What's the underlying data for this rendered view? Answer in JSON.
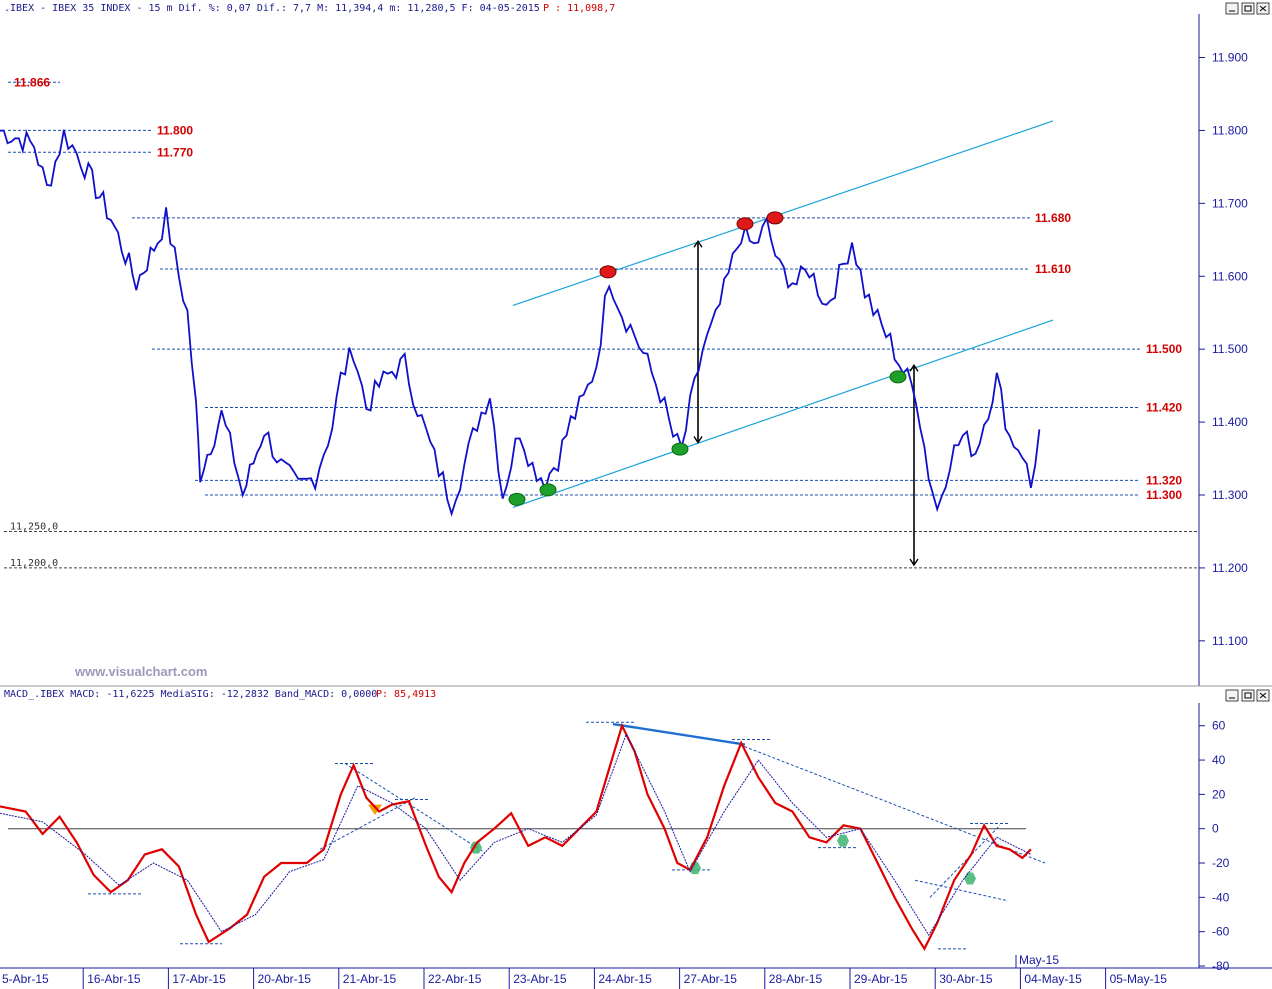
{
  "price_panel": {
    "header_left": ".IBEX - IBEX 35 INDEX -  15 m Dif. %: 0,07 Dif.: 7,7 M: 11,394,4 m: 11,280,5 F: 04-05-2015",
    "header_right": "P : 11,098,7",
    "watermark": "www.visualchart.com"
  },
  "macd_panel": {
    "header_left": "MACD_.IBEX MACD: -11,6225 MediaSIG: -12,2832 Band_MACD: 0,0000",
    "header_right": "P: 85,4913"
  },
  "colors": {
    "price": "#1010cc",
    "trendline": "#1aa3d8",
    "levels": "#1a4fb0",
    "level_labels": "#d40000",
    "macd": "#e00000",
    "signal": "#1a1aa0",
    "zero": "#444444",
    "axis_text": "#1a1aa0",
    "green_marker": "#1fa02a",
    "red_marker": "#e01818"
  },
  "chart_data": [
    {
      "type": "line",
      "title": "IBEX 35 INDEX - 15 m",
      "y_axis_ticks": [
        "11.900",
        "11.800",
        "11.700",
        "11.600",
        "11.500",
        "11.400",
        "11.300",
        "11.200",
        "11.100"
      ],
      "ylim": [
        11060,
        11935
      ],
      "x_labels": [
        "5-Abr-15",
        "16-Abr-15",
        "17-Abr-15",
        "20-Abr-15",
        "21-Abr-15",
        "22-Abr-15",
        "23-Abr-15",
        "24-Abr-15",
        "27-Abr-15",
        "28-Abr-15",
        "29-Abr-15",
        "30-Abr-15",
        "04-May-15",
        "05-May-15"
      ],
      "month_label": "May-15",
      "price_points": [
        [
          0,
          11800
        ],
        [
          0.4,
          11780
        ],
        [
          0.55,
          11720
        ],
        [
          0.75,
          11795
        ],
        [
          0.95,
          11760
        ],
        [
          1.3,
          11680
        ],
        [
          1.6,
          11590
        ],
        [
          1.85,
          11650
        ],
        [
          1.95,
          11680
        ],
        [
          2.1,
          11600
        ],
        [
          2.2,
          11550
        ],
        [
          2.3,
          11420
        ],
        [
          2.35,
          11330
        ],
        [
          2.6,
          11410
        ],
        [
          2.75,
          11350
        ],
        [
          2.85,
          11300
        ],
        [
          3.1,
          11390
        ],
        [
          3.3,
          11340
        ],
        [
          3.5,
          11310
        ],
        [
          3.7,
          11325
        ],
        [
          3.9,
          11395
        ],
        [
          4.0,
          11460
        ],
        [
          4.15,
          11500
        ],
        [
          4.3,
          11420
        ],
        [
          4.45,
          11450
        ],
        [
          4.6,
          11470
        ],
        [
          4.75,
          11480
        ],
        [
          4.9,
          11420
        ],
        [
          5.1,
          11350
        ],
        [
          5.3,
          11290
        ],
        [
          5.45,
          11340
        ],
        [
          5.6,
          11400
        ],
        [
          5.75,
          11440
        ],
        [
          5.9,
          11300
        ],
        [
          6.1,
          11390
        ],
        [
          6.25,
          11340
        ],
        [
          6.4,
          11320
        ],
        [
          6.55,
          11350
        ],
        [
          6.7,
          11400
        ],
        [
          6.85,
          11430
        ],
        [
          7.0,
          11480
        ],
        [
          7.15,
          11600
        ],
        [
          7.3,
          11550
        ],
        [
          7.45,
          11520
        ],
        [
          7.6,
          11480
        ],
        [
          7.75,
          11440
        ],
        [
          7.9,
          11380
        ],
        [
          8.0,
          11360
        ],
        [
          8.1,
          11420
        ],
        [
          8.25,
          11500
        ],
        [
          8.4,
          11540
        ],
        [
          8.55,
          11600
        ],
        [
          8.7,
          11660
        ],
        [
          8.85,
          11640
        ],
        [
          9.0,
          11670
        ],
        [
          9.15,
          11610
        ],
        [
          9.35,
          11590
        ],
        [
          9.5,
          11610
        ],
        [
          9.7,
          11560
        ],
        [
          9.85,
          11600
        ],
        [
          10.0,
          11650
        ],
        [
          10.15,
          11580
        ],
        [
          10.3,
          11540
        ],
        [
          10.45,
          11510
        ],
        [
          10.6,
          11470
        ],
        [
          10.75,
          11440
        ],
        [
          10.9,
          11330
        ],
        [
          11.0,
          11280
        ],
        [
          11.15,
          11350
        ],
        [
          11.3,
          11380
        ],
        [
          11.45,
          11360
        ],
        [
          11.55,
          11400
        ],
        [
          11.7,
          11460
        ],
        [
          11.85,
          11380
        ],
        [
          12.0,
          11360
        ],
        [
          12.1,
          11310
        ],
        [
          12.2,
          11390
        ]
      ],
      "levels_red": [
        "11.866",
        "11.800",
        "11.770",
        "11.680",
        "11.610",
        "11.500",
        "11.420",
        "11.320",
        "11.300"
      ],
      "levels_black": [
        "11,250,0",
        "11,200,0"
      ],
      "level_values": [
        11866,
        11800,
        11770,
        11680,
        11610,
        11500,
        11420,
        11320,
        11300,
        11250,
        11200
      ]
    },
    {
      "type": "line",
      "title": "MACD",
      "y_axis_ticks": [
        "60",
        "40",
        "20",
        "0",
        "-20",
        "-40",
        "-60",
        "-80"
      ],
      "ylim": [
        -80,
        68
      ],
      "series": [
        {
          "name": "MACD",
          "points": [
            [
              0,
              13
            ],
            [
              0.3,
              10
            ],
            [
              0.5,
              -3
            ],
            [
              0.7,
              7
            ],
            [
              0.9,
              -8
            ],
            [
              1.1,
              -27
            ],
            [
              1.3,
              -37
            ],
            [
              1.5,
              -30
            ],
            [
              1.7,
              -15
            ],
            [
              1.9,
              -12
            ],
            [
              2.1,
              -22
            ],
            [
              2.3,
              -50
            ],
            [
              2.45,
              -66
            ],
            [
              2.7,
              -58
            ],
            [
              2.9,
              -50
            ],
            [
              3.1,
              -28
            ],
            [
              3.3,
              -20
            ],
            [
              3.6,
              -20
            ],
            [
              3.8,
              -12
            ],
            [
              4.0,
              20
            ],
            [
              4.15,
              37
            ],
            [
              4.3,
              18
            ],
            [
              4.45,
              10
            ],
            [
              4.6,
              14
            ],
            [
              4.8,
              16
            ],
            [
              5.0,
              -10
            ],
            [
              5.15,
              -28
            ],
            [
              5.3,
              -37
            ],
            [
              5.45,
              -20
            ],
            [
              5.6,
              -8
            ],
            [
              5.8,
              0
            ],
            [
              6.0,
              9
            ],
            [
              6.2,
              -10
            ],
            [
              6.4,
              -5
            ],
            [
              6.6,
              -10
            ],
            [
              6.8,
              0
            ],
            [
              7.0,
              10
            ],
            [
              7.15,
              35
            ],
            [
              7.3,
              60
            ],
            [
              7.45,
              45
            ],
            [
              7.6,
              20
            ],
            [
              7.8,
              0
            ],
            [
              7.95,
              -20
            ],
            [
              8.1,
              -24
            ],
            [
              8.3,
              -5
            ],
            [
              8.5,
              25
            ],
            [
              8.7,
              50
            ],
            [
              8.9,
              30
            ],
            [
              9.1,
              15
            ],
            [
              9.3,
              10
            ],
            [
              9.5,
              -5
            ],
            [
              9.7,
              -8
            ],
            [
              9.9,
              2
            ],
            [
              10.1,
              0
            ],
            [
              10.3,
              -20
            ],
            [
              10.5,
              -40
            ],
            [
              10.7,
              -58
            ],
            [
              10.85,
              -70
            ],
            [
              11.0,
              -55
            ],
            [
              11.2,
              -30
            ],
            [
              11.4,
              -15
            ],
            [
              11.55,
              2
            ],
            [
              11.7,
              -10
            ],
            [
              11.85,
              -12
            ],
            [
              12.0,
              -17
            ],
            [
              12.1,
              -12
            ]
          ]
        },
        {
          "name": "MediaSIG",
          "points": [
            [
              0,
              9
            ],
            [
              0.5,
              4
            ],
            [
              1.0,
              -15
            ],
            [
              1.4,
              -33
            ],
            [
              1.8,
              -20
            ],
            [
              2.2,
              -30
            ],
            [
              2.6,
              -60
            ],
            [
              3.0,
              -50
            ],
            [
              3.4,
              -25
            ],
            [
              3.8,
              -18
            ],
            [
              4.2,
              25
            ],
            [
              4.6,
              15
            ],
            [
              5.0,
              0
            ],
            [
              5.4,
              -30
            ],
            [
              5.8,
              -8
            ],
            [
              6.2,
              0
            ],
            [
              6.6,
              -8
            ],
            [
              7.0,
              8
            ],
            [
              7.35,
              55
            ],
            [
              7.8,
              10
            ],
            [
              8.1,
              -25
            ],
            [
              8.5,
              10
            ],
            [
              8.9,
              40
            ],
            [
              9.3,
              15
            ],
            [
              9.7,
              -5
            ],
            [
              10.1,
              0
            ],
            [
              10.5,
              -30
            ],
            [
              10.9,
              -62
            ],
            [
              11.3,
              -30
            ],
            [
              11.7,
              -5
            ],
            [
              12.1,
              -15
            ]
          ]
        }
      ]
    }
  ]
}
